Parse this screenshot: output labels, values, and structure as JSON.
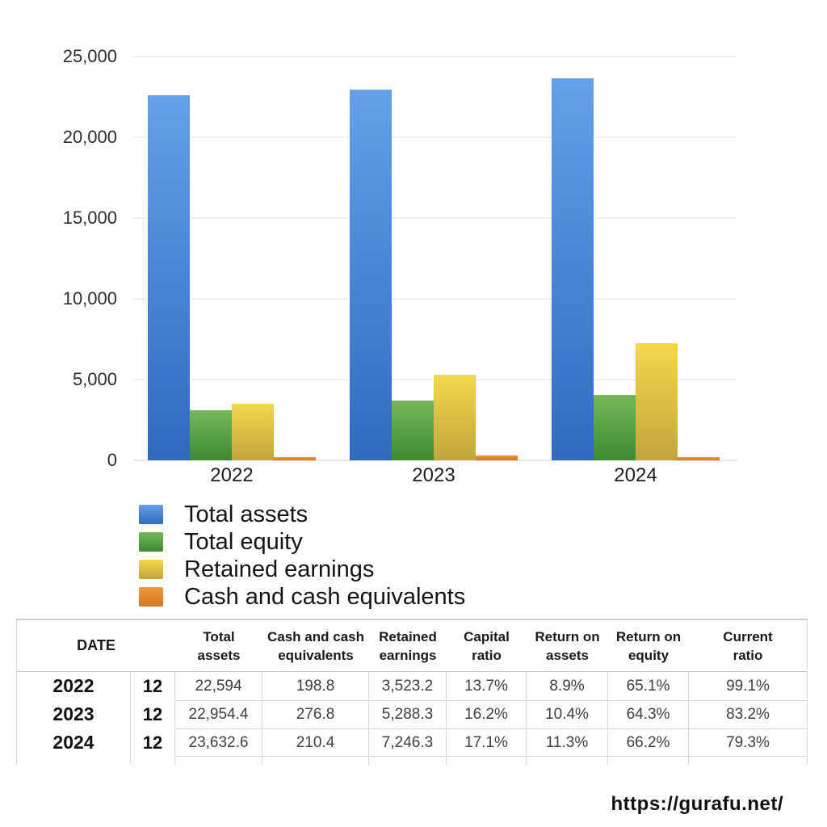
{
  "chart_data": {
    "type": "bar",
    "title": "",
    "xlabel": "",
    "ylabel": "",
    "categories": [
      "2022",
      "2023",
      "2024"
    ],
    "series": [
      {
        "name": "Total assets",
        "color_top": "#65a0e8",
        "color_bottom": "#2f6ac0",
        "values": [
          22594,
          22954.4,
          23632.6
        ]
      },
      {
        "name": "Total equity",
        "color_top": "#76b85a",
        "color_bottom": "#3d8a33",
        "values": [
          3095,
          3719,
          4041
        ]
      },
      {
        "name": "Retained earnings",
        "color_top": "#f3d84d",
        "color_bottom": "#c2a53c",
        "values": [
          3523.2,
          5288.3,
          7246.3
        ]
      },
      {
        "name": "Cash and cash equivalents",
        "color_top": "#ea993f",
        "color_bottom": "#d5761f",
        "values": [
          198.8,
          276.8,
          210.4
        ]
      }
    ],
    "ylim": [
      0,
      25000
    ],
    "ytick_labels": [
      "25,000",
      "20,000",
      "15,000",
      "10,000",
      "5,000",
      "0"
    ],
    "grid": true,
    "legend_position": "bottom-left"
  },
  "table": {
    "date_header": "DATE",
    "column_headers": [
      [
        "Total",
        "assets"
      ],
      [
        "Cash and cash",
        "equivalents"
      ],
      [
        "Retained",
        "earnings"
      ],
      [
        "Capital",
        "ratio"
      ],
      [
        "Return on",
        "assets"
      ],
      [
        "Return on",
        "equity"
      ],
      [
        "Current",
        "ratio"
      ]
    ],
    "rows": [
      {
        "year": "2022",
        "month": "12",
        "values": [
          "22,594",
          "198.8",
          "3,523.2",
          "13.7%",
          "8.9%",
          "65.1%",
          "99.1%"
        ]
      },
      {
        "year": "2023",
        "month": "12",
        "values": [
          "22,954.4",
          "276.8",
          "5,288.3",
          "16.2%",
          "10.4%",
          "64.3%",
          "83.2%"
        ]
      },
      {
        "year": "2024",
        "month": "12",
        "values": [
          "23,632.6",
          "210.4",
          "7,246.3",
          "17.1%",
          "11.3%",
          "66.2%",
          "79.3%"
        ]
      }
    ]
  },
  "footer": {
    "url": "https://gurafu.net/"
  }
}
